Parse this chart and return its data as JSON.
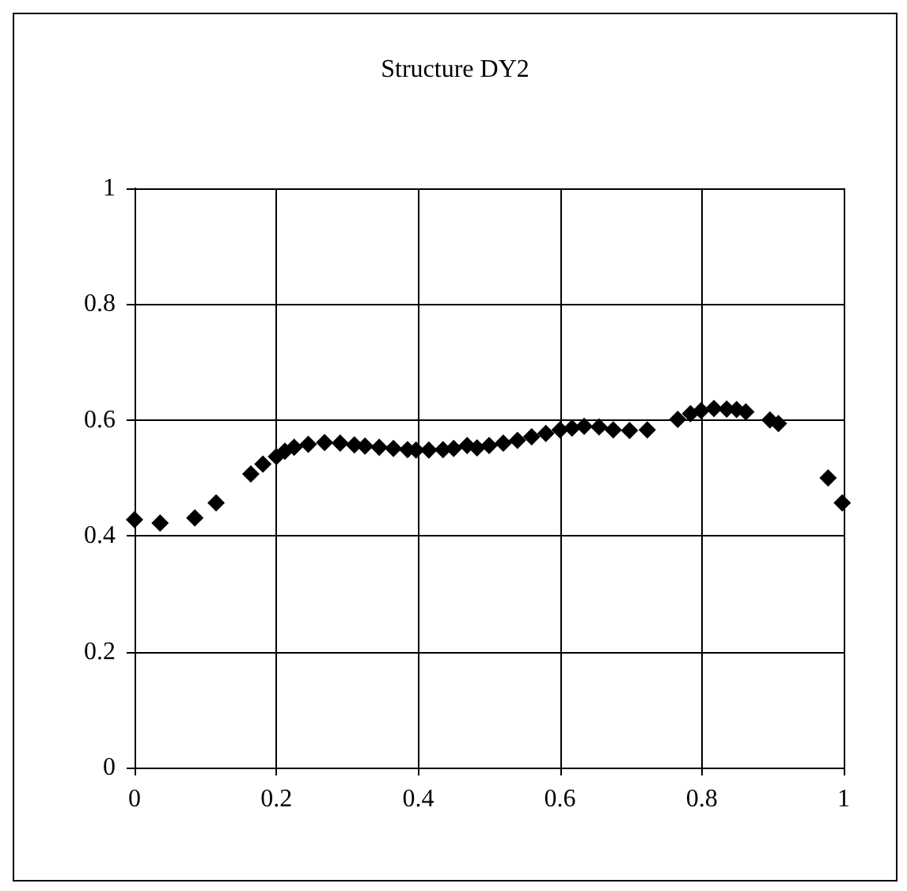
{
  "chart_data": {
    "type": "scatter",
    "title": "Structure DY2",
    "x": [
      0,
      0.036,
      0.085,
      0.115,
      0.164,
      0.181,
      0.2,
      0.212,
      0.225,
      0.245,
      0.268,
      0.29,
      0.31,
      0.325,
      0.345,
      0.365,
      0.385,
      0.397,
      0.415,
      0.435,
      0.45,
      0.469,
      0.483,
      0.5,
      0.52,
      0.54,
      0.56,
      0.58,
      0.6,
      0.617,
      0.634,
      0.655,
      0.675,
      0.698,
      0.723,
      0.766,
      0.784,
      0.799,
      0.817,
      0.835,
      0.849,
      0.862,
      0.896,
      0.908,
      0.978,
      0.998
    ],
    "values": [
      0.428,
      0.422,
      0.431,
      0.457,
      0.507,
      0.524,
      0.537,
      0.546,
      0.553,
      0.558,
      0.561,
      0.56,
      0.557,
      0.555,
      0.553,
      0.551,
      0.549,
      0.548,
      0.548,
      0.549,
      0.551,
      0.556,
      0.552,
      0.556,
      0.56,
      0.565,
      0.571,
      0.577,
      0.583,
      0.586,
      0.589,
      0.588,
      0.583,
      0.582,
      0.583,
      0.601,
      0.611,
      0.616,
      0.62,
      0.619,
      0.618,
      0.614,
      0.6,
      0.594,
      0.5,
      0.457
    ],
    "color": "#000000",
    "marker": "diamond",
    "xlim": [
      0,
      1
    ],
    "xticks": [
      0,
      0.2,
      0.4,
      0.6,
      0.8,
      1
    ],
    "ylim": [
      0,
      1
    ],
    "yticks": [
      0,
      0.2,
      0.4,
      0.6,
      0.8,
      1
    ],
    "grid": true
  }
}
